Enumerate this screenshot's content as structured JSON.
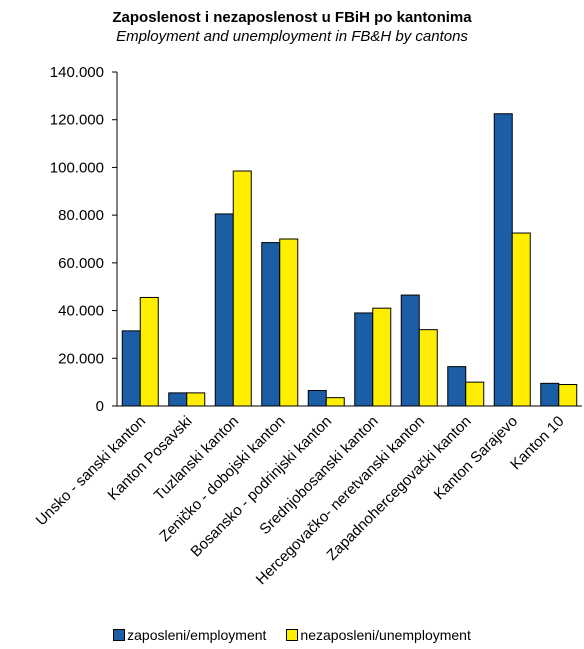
{
  "chart_data": {
    "type": "bar",
    "title": "Zaposlenost i nezaposlenost u FBiH po kantonima",
    "subtitle": "Employment and unemployment  in FB&H by cantons",
    "categories": [
      "Unsko - sanski kanton",
      "Kanton Posavski",
      "Tuzlanski kanton",
      "Zeničko - dobojski kanton",
      "Bosansko - podrinjski kanton",
      "Srednjobosanski kanton",
      "Hercegovačko- neretvanski kanton",
      "Zapadnohercegovački kanton",
      "Kanton Sarajevo",
      "Kanton 10"
    ],
    "series": [
      {
        "name": "zaposleni/employment",
        "color": "#1b5ea6",
        "values": [
          31500,
          5500,
          80500,
          68500,
          6500,
          39000,
          46500,
          16500,
          122500,
          9500
        ]
      },
      {
        "name": "nezaposleni/unemployment",
        "color": "#ffee00",
        "values": [
          45500,
          5500,
          98500,
          70000,
          3500,
          41000,
          32000,
          10000,
          72500,
          9000
        ]
      }
    ],
    "ylim": [
      0,
      140000
    ],
    "yticks": [
      0,
      20000,
      40000,
      60000,
      80000,
      100000,
      120000,
      140000
    ],
    "ytick_labels": [
      "0",
      "20.000",
      "40.000",
      "60.000",
      "80.000",
      "100.000",
      "120.000",
      "140.000"
    ],
    "xlabel": "",
    "ylabel": "",
    "grid": false,
    "legend_position": "bottom"
  }
}
